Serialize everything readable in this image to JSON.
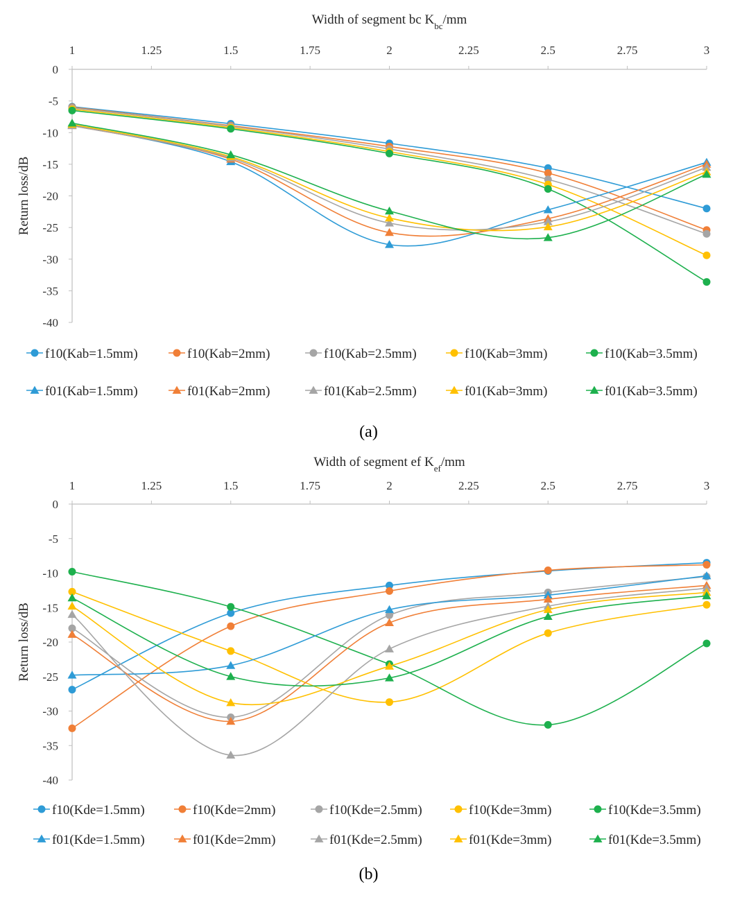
{
  "chart_data": [
    {
      "type": "line",
      "panel_label": "(a)",
      "xlabel": "Width of segment bc K",
      "xlabel_sub": "bc",
      "xlabel_suffix": "/mm",
      "ylabel": "Return loss/dB",
      "xlim": [
        1,
        3
      ],
      "ylim": [
        -40,
        0
      ],
      "x_ticks": [
        "1",
        "1.25",
        "1.5",
        "1.75",
        "2",
        "2.25",
        "2.5",
        "2.75",
        "3"
      ],
      "y_ticks": [
        "0",
        "-5",
        "-10",
        "-15",
        "-20",
        "-25",
        "-30",
        "-35",
        "-40"
      ],
      "x": [
        1,
        1.5,
        2,
        2.5,
        3
      ],
      "series": [
        {
          "name": "f10(Kab=1.5mm)",
          "color": "#2E9BD6",
          "marker": "circle",
          "values": [
            -5.9,
            -8.6,
            -11.7,
            -15.6,
            -22.0
          ]
        },
        {
          "name": "f10(Kab=2mm)",
          "color": "#F07F37",
          "marker": "circle",
          "values": [
            -6.0,
            -8.9,
            -12.2,
            -16.4,
            -25.4
          ]
        },
        {
          "name": "f10(Kab=2.5mm)",
          "color": "#A5A5A5",
          "marker": "circle",
          "values": [
            -6.1,
            -9.0,
            -12.6,
            -17.4,
            -26.0
          ]
        },
        {
          "name": "f10(Kab=3mm)",
          "color": "#FFC000",
          "marker": "circle",
          "values": [
            -6.3,
            -9.2,
            -13.0,
            -18.2,
            -29.4
          ]
        },
        {
          "name": "f10(Kab=3.5mm)",
          "color": "#1DB04D",
          "marker": "circle",
          "values": [
            -6.5,
            -9.4,
            -13.3,
            -18.9,
            -33.6
          ]
        },
        {
          "name": "f01(Kab=1.5mm)",
          "color": "#2E9BD6",
          "marker": "triangle",
          "values": [
            -8.8,
            -14.6,
            -27.7,
            -22.2,
            -14.7
          ]
        },
        {
          "name": "f01(Kab=2mm)",
          "color": "#F07F37",
          "marker": "triangle",
          "values": [
            -8.9,
            -14.2,
            -25.8,
            -23.6,
            -15.0
          ]
        },
        {
          "name": "f01(Kab=2.5mm)",
          "color": "#A5A5A5",
          "marker": "triangle",
          "values": [
            -8.9,
            -14.0,
            -24.3,
            -24.1,
            -15.5
          ]
        },
        {
          "name": "f01(Kab=3mm)",
          "color": "#FFC000",
          "marker": "triangle",
          "values": [
            -8.7,
            -13.8,
            -23.5,
            -24.9,
            -16.2
          ]
        },
        {
          "name": "f01(Kab=3.5mm)",
          "color": "#1DB04D",
          "marker": "triangle",
          "values": [
            -8.5,
            -13.5,
            -22.4,
            -26.6,
            -16.6
          ]
        }
      ]
    },
    {
      "type": "line",
      "panel_label": "(b)",
      "xlabel": "Width of segment ef K",
      "xlabel_sub": "ef",
      "xlabel_suffix": "/mm",
      "ylabel": "Return loss/dB",
      "xlim": [
        1,
        3
      ],
      "ylim": [
        -40,
        0
      ],
      "x_ticks": [
        "1",
        "1.25",
        "1.5",
        "1.75",
        "2",
        "2.25",
        "2.5",
        "2.75",
        "3"
      ],
      "y_ticks": [
        "0",
        "-5",
        "-10",
        "-15",
        "-20",
        "-25",
        "-30",
        "-35",
        "-40"
      ],
      "x": [
        1,
        1.5,
        2,
        2.5,
        3
      ],
      "series": [
        {
          "name": "f10(Kde=1.5mm)",
          "color": "#2E9BD6",
          "marker": "circle",
          "values": [
            -26.9,
            -15.8,
            -11.8,
            -9.7,
            -8.5
          ]
        },
        {
          "name": "f10(Kde=2mm)",
          "color": "#F07F37",
          "marker": "circle",
          "values": [
            -32.5,
            -17.7,
            -12.6,
            -9.6,
            -8.8
          ]
        },
        {
          "name": "f10(Kde=2.5mm)",
          "color": "#A5A5A5",
          "marker": "circle",
          "values": [
            -18.0,
            -30.9,
            -16.1,
            -12.8,
            -10.5
          ]
        },
        {
          "name": "f10(Kde=3mm)",
          "color": "#FFC000",
          "marker": "circle",
          "values": [
            -12.7,
            -21.3,
            -28.7,
            -18.7,
            -14.6
          ]
        },
        {
          "name": "f10(Kde=3.5mm)",
          "color": "#1DB04D",
          "marker": "circle",
          "values": [
            -9.8,
            -14.9,
            -23.2,
            -32.0,
            -20.2
          ]
        },
        {
          "name": "f01(Kde=1.5mm)",
          "color": "#2E9BD6",
          "marker": "triangle",
          "values": [
            -24.8,
            -23.4,
            -15.3,
            -13.2,
            -10.4
          ]
        },
        {
          "name": "f01(Kde=2mm)",
          "color": "#F07F37",
          "marker": "triangle",
          "values": [
            -18.9,
            -31.5,
            -17.2,
            -13.8,
            -11.8
          ]
        },
        {
          "name": "f01(Kde=2.5mm)",
          "color": "#A5A5A5",
          "marker": "triangle",
          "values": [
            -16.0,
            -36.4,
            -21.0,
            -14.8,
            -12.2
          ]
        },
        {
          "name": "f01(Kde=3mm)",
          "color": "#FFC000",
          "marker": "triangle",
          "values": [
            -14.8,
            -28.8,
            -23.5,
            -15.3,
            -12.8
          ]
        },
        {
          "name": "f01(Kde=3.5mm)",
          "color": "#1DB04D",
          "marker": "triangle",
          "values": [
            -13.6,
            -25.0,
            -25.2,
            -16.3,
            -13.3
          ]
        }
      ]
    }
  ]
}
